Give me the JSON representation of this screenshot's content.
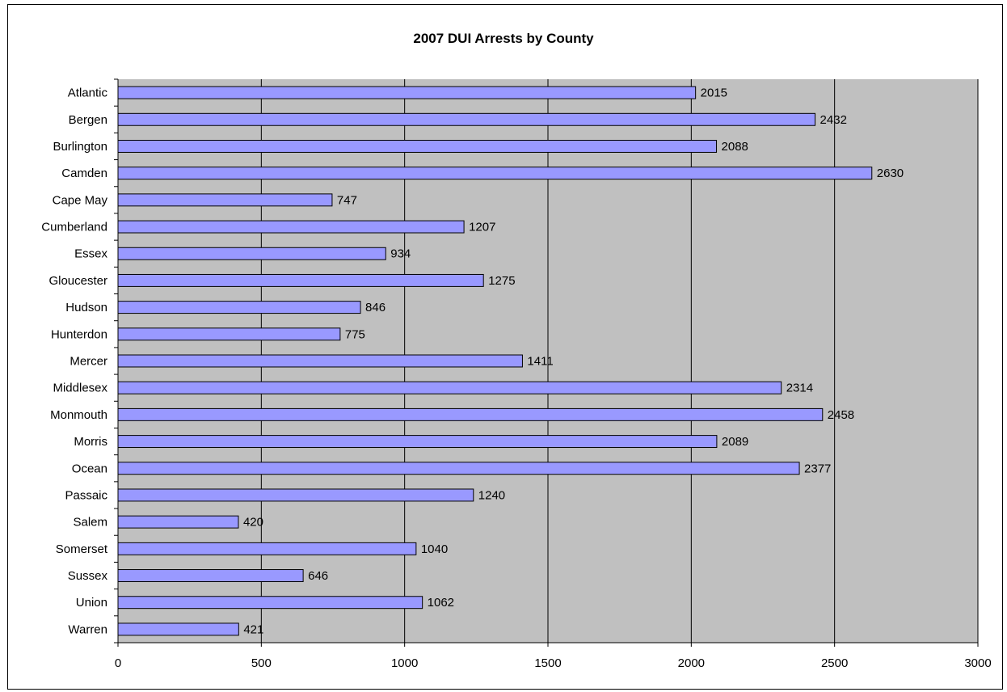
{
  "chart_data": {
    "type": "bar",
    "orientation": "horizontal",
    "title": "2007 DUI Arrests by County",
    "xlabel": "",
    "ylabel": "",
    "categories": [
      "Atlantic",
      "Bergen",
      "Burlington",
      "Camden",
      "Cape May",
      "Cumberland",
      "Essex",
      "Gloucester",
      "Hudson",
      "Hunterdon",
      "Mercer",
      "Middlesex",
      "Monmouth",
      "Morris",
      "Ocean",
      "Passaic",
      "Salem",
      "Somerset",
      "Sussex",
      "Union",
      "Warren"
    ],
    "values": [
      2015,
      2432,
      2088,
      2630,
      747,
      1207,
      934,
      1275,
      846,
      775,
      1411,
      2314,
      2458,
      2089,
      2377,
      1240,
      420,
      1040,
      646,
      1062,
      421
    ],
    "xlim": [
      0,
      3000
    ],
    "xticks": [
      "0",
      "500",
      "1000",
      "1500",
      "2000",
      "2500",
      "3000"
    ],
    "grid": true,
    "legend": "none",
    "colors": {
      "bar": "#9999ff",
      "plot_bg": "#c0c0c0",
      "grid": "#000000"
    }
  }
}
